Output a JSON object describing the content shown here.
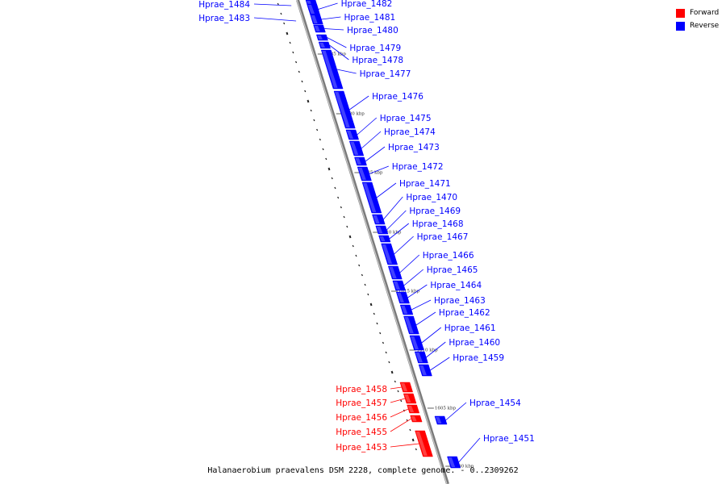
{
  "legend": {
    "forward_label": "Forward",
    "reverse_label": "Reverse",
    "forward_color": "#ff0000",
    "reverse_color": "#0000ff"
  },
  "caption": "Halanaerobium praevalens DSM 2228, complete genome. - 0..2309262",
  "genes": [
    {
      "name": "Hprae_1484",
      "strand": "reverse"
    },
    {
      "name": "Hprae_1483",
      "strand": "reverse"
    },
    {
      "name": "Hprae_1482",
      "strand": "reverse"
    },
    {
      "name": "Hprae_1481",
      "strand": "reverse"
    },
    {
      "name": "Hprae_1480",
      "strand": "reverse"
    },
    {
      "name": "Hprae_1479",
      "strand": "reverse"
    },
    {
      "name": "Hprae_1478",
      "strand": "reverse"
    },
    {
      "name": "Hprae_1477",
      "strand": "reverse"
    },
    {
      "name": "Hprae_1476",
      "strand": "reverse"
    },
    {
      "name": "Hprae_1475",
      "strand": "reverse"
    },
    {
      "name": "Hprae_1474",
      "strand": "reverse"
    },
    {
      "name": "Hprae_1473",
      "strand": "reverse"
    },
    {
      "name": "Hprae_1472",
      "strand": "reverse"
    },
    {
      "name": "Hprae_1471",
      "strand": "reverse"
    },
    {
      "name": "Hprae_1470",
      "strand": "reverse"
    },
    {
      "name": "Hprae_1469",
      "strand": "reverse"
    },
    {
      "name": "Hprae_1468",
      "strand": "reverse"
    },
    {
      "name": "Hprae_1467",
      "strand": "reverse"
    },
    {
      "name": "Hprae_1466",
      "strand": "reverse"
    },
    {
      "name": "Hprae_1465",
      "strand": "reverse"
    },
    {
      "name": "Hprae_1464",
      "strand": "reverse"
    },
    {
      "name": "Hprae_1463",
      "strand": "reverse"
    },
    {
      "name": "Hprae_1462",
      "strand": "reverse"
    },
    {
      "name": "Hprae_1461",
      "strand": "reverse"
    },
    {
      "name": "Hprae_1460",
      "strand": "reverse"
    },
    {
      "name": "Hprae_1459",
      "strand": "reverse"
    },
    {
      "name": "Hprae_1458",
      "strand": "forward"
    },
    {
      "name": "Hprae_1457",
      "strand": "forward"
    },
    {
      "name": "Hprae_1456",
      "strand": "forward"
    },
    {
      "name": "Hprae_1455",
      "strand": "forward"
    },
    {
      "name": "Hprae_1453",
      "strand": "forward"
    },
    {
      "name": "Hprae_1454",
      "strand": "reverse"
    },
    {
      "name": "Hprae_1451",
      "strand": "reverse"
    }
  ],
  "ticks": [
    "1635 kbp",
    "1630 kbp",
    "1625 kbp",
    "1620 kbp",
    "1615 kbp",
    "1610 kbp",
    "1605 kbp",
    "1600 kbp"
  ]
}
